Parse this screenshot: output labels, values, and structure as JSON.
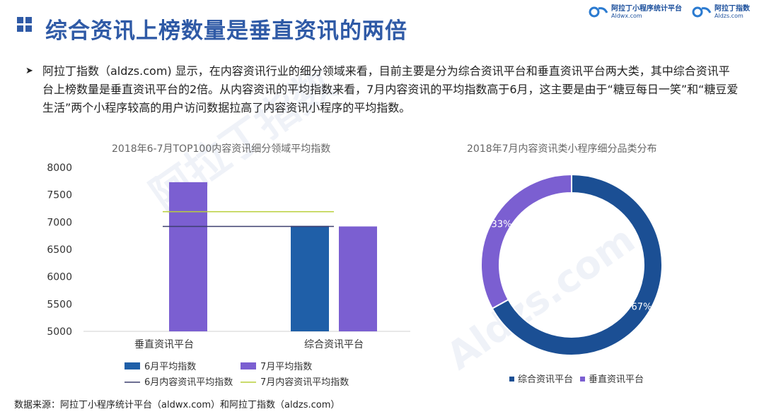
{
  "header": {
    "title": "综合资讯上榜数量是垂直资讯的两倍",
    "logos": [
      {
        "name": "阿拉丁小程序统计平台",
        "url": "Aldwx.com"
      },
      {
        "name": "阿拉丁指数",
        "url": "Aldzs.com"
      }
    ]
  },
  "bullet": {
    "text": "阿拉丁指数（aldzs.com) 显示，在内容资讯行业的细分领域来看，目前主要是分为综合资讯平台和垂直资讯平台两大类，其中综合资讯平台上榜数量是垂直资讯平台的2倍。从内容资讯的平均指数来看，7月内容资讯的平均指数高于6月，这主要是由于“糖豆每日一笑”和“糖豆爱生活”两个小程序较高的用户访问数据拉高了内容资讯小程序的平均指数。"
  },
  "source": "数据来源：阿拉丁小程序统计平台（aldwx.com）和阿拉丁指数（aldzs.com）",
  "watermark": {
    "brand": "阿拉丁指数",
    "url": "Aldzs.com"
  },
  "chart_data": [
    {
      "type": "bar",
      "title": "2018年6-7月TOP100内容资讯细分领域平均指数",
      "categories": [
        "垂直资讯平台",
        "综合资讯平台"
      ],
      "ylim": [
        5000,
        8000
      ],
      "yticks": [
        5000,
        5500,
        6000,
        6500,
        7000,
        7500,
        8000
      ],
      "series": [
        {
          "name": "6月平均指数",
          "values": [
            null,
            6930
          ],
          "color": "#1f5fa8"
        },
        {
          "name": "7月平均指数",
          "values": [
            7730,
            6920
          ],
          "color": "#7b5fd1"
        }
      ],
      "reference_lines": [
        {
          "name": "6月内容资讯平均指数",
          "value": 6920,
          "color": "#3c3f6e"
        },
        {
          "name": "7月内容资讯平均指数",
          "value": 7190,
          "color": "#b9cf3a"
        }
      ],
      "legend": "bottom"
    },
    {
      "type": "pie",
      "variant": "donut",
      "title": "2018年7月内容资讯类小程序细分品类分布",
      "slices": [
        {
          "name": "综合资讯平台",
          "value": 67,
          "label": "67%",
          "color": "#1b4f94"
        },
        {
          "name": "垂直资讯平台",
          "value": 33,
          "label": "33%",
          "color": "#7b5fd1"
        }
      ],
      "legend": "bottom"
    }
  ]
}
